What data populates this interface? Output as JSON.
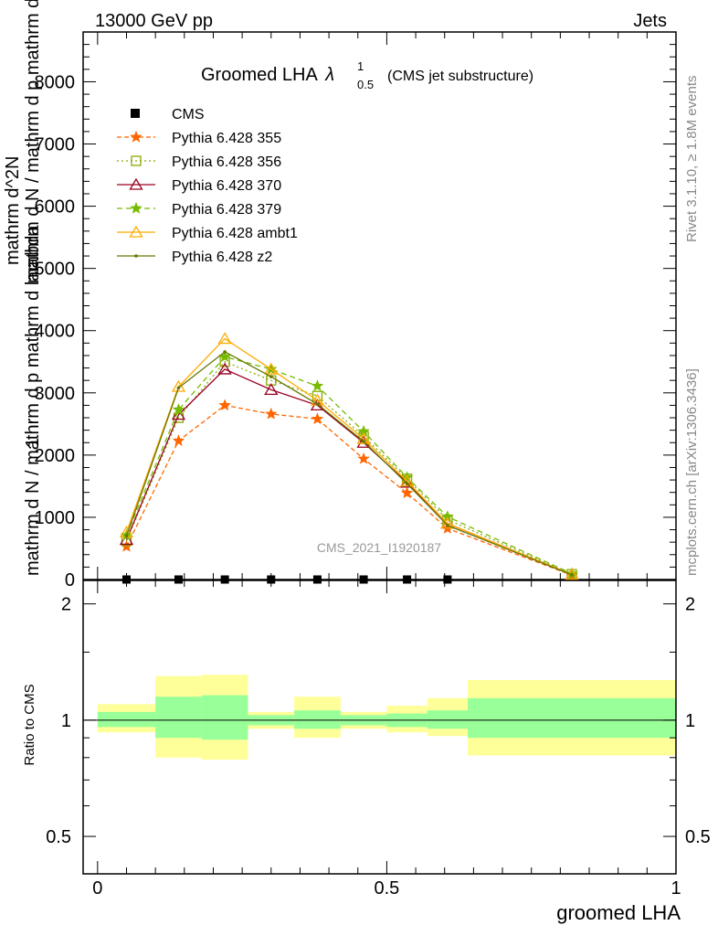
{
  "header": {
    "energy_label": "13000 GeV pp",
    "process_label": "Jets",
    "side_rivet": "Rivet 3.1.10, ≥ 1.8M events",
    "side_mcplots": "mcplots.cern.ch [arXiv:1306.3436]"
  },
  "chart_data": [
    {
      "type": "line",
      "title_main": "Groomed LHA",
      "title_lambda": "λ",
      "title_sup": "1",
      "title_sub": "0.5",
      "title_note": "(CMS jet substructure)",
      "analysis_label": "CMS_2021_I1920187",
      "ylabel_numerator": "1",
      "ylabel_line1": "mathrm d N / mathrm d p mathrm d lambda",
      "ylabel_line2": "mathrm d N / mathrm d p mathrm d lambda",
      "ylabel_line3": "mathrm d^2N",
      "ylim": [
        0,
        8800
      ],
      "xlim": [
        -0.025,
        1.0
      ],
      "yticks": [
        0,
        1000,
        2000,
        3000,
        4000,
        5000,
        6000,
        7000,
        8000
      ],
      "ytick_labels": [
        "0",
        "1000",
        "2000",
        "3000",
        "4000",
        "5000",
        "6000",
        "7000",
        "8000"
      ],
      "x": [
        0.05,
        0.14,
        0.22,
        0.3,
        0.38,
        0.46,
        0.535,
        0.605,
        0.82
      ],
      "data_series": {
        "name": "CMS",
        "values": [
          0,
          0,
          0,
          0,
          0,
          0,
          0,
          0,
          0
        ]
      },
      "series": [
        {
          "name": "Pythia 6.428 355",
          "color": "#ff6600",
          "dash": "5,3",
          "marker": "star",
          "values": [
            530,
            2230,
            2800,
            2660,
            2580,
            1940,
            1390,
            820,
            70
          ]
        },
        {
          "name": "Pythia 6.428 356",
          "color": "#88aa00",
          "dash": "2,3",
          "marker": "square",
          "values": [
            620,
            2600,
            3500,
            3200,
            2950,
            2300,
            1620,
            960,
            85
          ]
        },
        {
          "name": "Pythia 6.428 370",
          "color": "#990022",
          "dash": "",
          "marker": "triangle",
          "values": [
            640,
            2650,
            3380,
            3050,
            2800,
            2200,
            1560,
            900,
            80
          ]
        },
        {
          "name": "Pythia 6.428 379",
          "color": "#77bb00",
          "dash": "6,4",
          "marker": "star",
          "values": [
            710,
            2730,
            3580,
            3380,
            3110,
            2380,
            1640,
            1010,
            95
          ]
        },
        {
          "name": "Pythia 6.428 ambt1",
          "color": "#ffaa00",
          "dash": "",
          "marker": "triangle",
          "values": [
            760,
            3100,
            3870,
            3380,
            2880,
            2260,
            1580,
            900,
            80
          ]
        },
        {
          "name": "Pythia 6.428 z2",
          "color": "#667700",
          "dash": "",
          "marker": "dot",
          "values": [
            700,
            3080,
            3660,
            3260,
            2820,
            2220,
            1540,
            870,
            75
          ]
        }
      ]
    },
    {
      "type": "area",
      "ylabel": "Ratio to CMS",
      "xlabel": "groomed LHA",
      "ylim": [
        0.4,
        2.3
      ],
      "scale": "log",
      "yticks": [
        0.5,
        1,
        2
      ],
      "ytick_labels": [
        "0.5",
        "1",
        "2"
      ],
      "xticks": [
        0,
        0.5,
        1
      ],
      "xtick_labels": [
        "0",
        "0.5",
        "1"
      ],
      "bins": [
        {
          "x_low": 0.0,
          "x_high": 0.1,
          "inner_low": 0.96,
          "inner_high": 1.05,
          "outer_low": 0.93,
          "outer_high": 1.1
        },
        {
          "x_low": 0.1,
          "x_high": 0.18,
          "inner_low": 0.9,
          "inner_high": 1.15,
          "outer_low": 0.8,
          "outer_high": 1.3
        },
        {
          "x_low": 0.18,
          "x_high": 0.26,
          "inner_low": 0.89,
          "inner_high": 1.16,
          "outer_low": 0.79,
          "outer_high": 1.31
        },
        {
          "x_low": 0.26,
          "x_high": 0.34,
          "inner_low": 0.97,
          "inner_high": 1.03,
          "outer_low": 0.95,
          "outer_high": 1.05
        },
        {
          "x_low": 0.34,
          "x_high": 0.42,
          "inner_low": 0.95,
          "inner_high": 1.06,
          "outer_low": 0.9,
          "outer_high": 1.15
        },
        {
          "x_low": 0.42,
          "x_high": 0.5,
          "inner_low": 0.97,
          "inner_high": 1.03,
          "outer_low": 0.95,
          "outer_high": 1.05
        },
        {
          "x_low": 0.5,
          "x_high": 0.57,
          "inner_low": 0.96,
          "inner_high": 1.04,
          "outer_low": 0.93,
          "outer_high": 1.09
        },
        {
          "x_low": 0.57,
          "x_high": 0.64,
          "inner_low": 0.95,
          "inner_high": 1.06,
          "outer_low": 0.91,
          "outer_high": 1.14
        },
        {
          "x_low": 0.64,
          "x_high": 1.0,
          "inner_low": 0.9,
          "inner_high": 1.14,
          "outer_low": 0.81,
          "outer_high": 1.27
        }
      ]
    }
  ],
  "colors": {
    "band_inner": "#99ff99",
    "band_outer": "#ffff99",
    "frame": "#000000"
  }
}
